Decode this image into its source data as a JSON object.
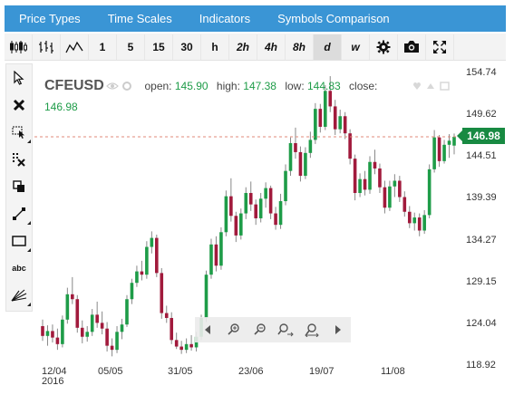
{
  "menu": {
    "items": [
      {
        "label": "Price Types"
      },
      {
        "label": "Time Scales"
      },
      {
        "label": "Indicators"
      },
      {
        "label": "Symbols Comparison"
      }
    ]
  },
  "toolbar": {
    "chart_types": [
      "candlestick-icon",
      "ohlc-bars-icon",
      "line-chart-icon"
    ],
    "periods": [
      "1",
      "5",
      "15",
      "30",
      "h",
      "2h",
      "4h",
      "8h",
      "d",
      "w"
    ],
    "active_period": "d",
    "actions": [
      "settings-gear-icon",
      "camera-icon",
      "fullscreen-icon"
    ]
  },
  "sidebar": {
    "tools": [
      "cursor-arrow-icon",
      "delete-x-icon",
      "select-area-icon",
      "clear-drawings-icon",
      "copy-icon",
      "trend-line-icon",
      "rectangle-icon",
      "text-abc-icon",
      "fan-lines-icon"
    ],
    "text_tool_label": "abc"
  },
  "legend": {
    "symbol": "CFEUSD",
    "open_label": "open:",
    "open": "145.90",
    "high_label": "high:",
    "high": "147.38",
    "low_label": "low:",
    "low": "144.83",
    "close_label": "close:",
    "close": "146.98"
  },
  "last_price": "146.98",
  "colors": {
    "menubar": "#3a95d5",
    "up": "#1e9c48",
    "down": "#a11a3c",
    "last_price_tag": "#188a42",
    "price_line": "#e08a7a"
  },
  "chart_data": {
    "type": "candlestick",
    "y_ticks": [
      "154.74",
      "149.62",
      "144.51",
      "139.39",
      "134.27",
      "129.15",
      "124.04",
      "118.92"
    ],
    "y_tick_values": [
      154.74,
      149.62,
      144.51,
      139.39,
      134.27,
      129.15,
      124.04,
      118.92
    ],
    "ylim": [
      118.92,
      154.74
    ],
    "x_ticks": [
      "12/04",
      "05/05",
      "31/05",
      "23/06",
      "19/07",
      "11/08"
    ],
    "x_year": "2016",
    "last_price": 146.98,
    "candles": [
      [
        123.8,
        124.6,
        122.0,
        122.6
      ],
      [
        122.6,
        123.9,
        121.4,
        123.2
      ],
      [
        123.2,
        124.0,
        121.8,
        122.4
      ],
      [
        122.4,
        123.5,
        120.9,
        121.6
      ],
      [
        121.6,
        125.1,
        121.2,
        124.6
      ],
      [
        124.6,
        128.5,
        124.1,
        127.7
      ],
      [
        127.7,
        129.8,
        126.5,
        127.1
      ],
      [
        127.1,
        127.6,
        123.0,
        123.6
      ],
      [
        123.6,
        124.5,
        121.7,
        122.5
      ],
      [
        122.5,
        123.8,
        121.9,
        123.1
      ],
      [
        123.1,
        125.9,
        122.6,
        125.2
      ],
      [
        125.2,
        126.8,
        123.6,
        124.2
      ],
      [
        124.2,
        125.6,
        122.8,
        123.5
      ],
      [
        123.5,
        124.3,
        120.7,
        121.4
      ],
      [
        121.4,
        122.3,
        120.1,
        120.9
      ],
      [
        120.9,
        123.8,
        120.5,
        123.1
      ],
      [
        123.1,
        124.7,
        122.2,
        124.0
      ],
      [
        124.0,
        127.6,
        123.7,
        127.1
      ],
      [
        127.1,
        129.6,
        126.5,
        129.1
      ],
      [
        129.1,
        131.2,
        128.6,
        130.5
      ],
      [
        130.5,
        131.8,
        129.4,
        130.1
      ],
      [
        130.1,
        134.2,
        129.6,
        133.5
      ],
      [
        133.5,
        135.4,
        132.7,
        134.6
      ],
      [
        134.6,
        135.0,
        129.8,
        130.3
      ],
      [
        130.3,
        130.9,
        124.7,
        125.4
      ],
      [
        125.4,
        126.3,
        124.2,
        124.8
      ],
      [
        124.8,
        125.5,
        121.6,
        122.1
      ],
      [
        122.1,
        123.0,
        121.0,
        121.3
      ],
      [
        121.3,
        122.0,
        120.4,
        120.9
      ],
      [
        120.9,
        122.3,
        120.5,
        121.6
      ],
      [
        121.6,
        122.7,
        120.8,
        121.2
      ],
      [
        121.2,
        123.1,
        120.7,
        122.5
      ],
      [
        122.5,
        125.2,
        122.1,
        124.8
      ],
      [
        124.8,
        130.6,
        124.3,
        130.1
      ],
      [
        130.1,
        134.5,
        129.6,
        133.8
      ],
      [
        133.8,
        134.8,
        130.5,
        131.2
      ],
      [
        131.2,
        135.9,
        130.7,
        135.3
      ],
      [
        135.3,
        140.4,
        134.8,
        139.7
      ],
      [
        139.7,
        141.9,
        136.6,
        137.3
      ],
      [
        137.3,
        137.8,
        134.1,
        134.9
      ],
      [
        134.9,
        138.2,
        134.4,
        137.6
      ],
      [
        137.6,
        140.8,
        136.9,
        140.1
      ],
      [
        140.1,
        141.5,
        137.9,
        138.7
      ],
      [
        138.7,
        139.3,
        136.2,
        137.0
      ],
      [
        137.0,
        140.1,
        136.5,
        139.4
      ],
      [
        139.4,
        141.4,
        138.3,
        140.7
      ],
      [
        140.7,
        141.0,
        136.9,
        137.6
      ],
      [
        137.6,
        138.4,
        135.6,
        136.2
      ],
      [
        136.2,
        140.0,
        135.7,
        139.1
      ],
      [
        139.1,
        143.6,
        138.6,
        142.8
      ],
      [
        142.8,
        146.9,
        142.2,
        146.2
      ],
      [
        146.2,
        148.1,
        144.3,
        145.1
      ],
      [
        145.1,
        145.8,
        141.5,
        142.2
      ],
      [
        142.2,
        145.7,
        141.8,
        145.0
      ],
      [
        145.0,
        147.6,
        144.4,
        146.6
      ],
      [
        146.6,
        151.1,
        146.1,
        150.4
      ],
      [
        150.4,
        151.0,
        147.5,
        148.2
      ],
      [
        148.2,
        153.3,
        147.8,
        152.6
      ],
      [
        152.6,
        154.4,
        150.0,
        150.7
      ],
      [
        150.7,
        151.5,
        147.2,
        147.9
      ],
      [
        147.9,
        150.3,
        147.4,
        149.5
      ],
      [
        149.5,
        150.0,
        146.7,
        147.4
      ],
      [
        147.4,
        147.9,
        143.6,
        144.3
      ],
      [
        144.3,
        144.8,
        139.2,
        140.1
      ],
      [
        140.1,
        142.5,
        139.6,
        141.8
      ],
      [
        141.8,
        142.8,
        139.8,
        140.5
      ],
      [
        140.5,
        144.6,
        140.0,
        143.9
      ],
      [
        143.9,
        145.4,
        142.4,
        143.1
      ],
      [
        143.1,
        143.7,
        140.1,
        140.8
      ],
      [
        140.8,
        141.6,
        137.6,
        138.3
      ],
      [
        138.3,
        141.6,
        137.9,
        140.9
      ],
      [
        140.9,
        142.4,
        139.6,
        141.6
      ],
      [
        141.6,
        142.2,
        139.0,
        139.6
      ],
      [
        139.6,
        140.3,
        137.2,
        137.8
      ],
      [
        137.8,
        138.5,
        135.8,
        136.4
      ],
      [
        136.4,
        137.7,
        135.5,
        137.1
      ],
      [
        137.1,
        137.6,
        134.8,
        135.5
      ],
      [
        135.5,
        138.0,
        135.1,
        137.4
      ],
      [
        137.4,
        143.6,
        137.0,
        143.0
      ],
      [
        143.0,
        147.8,
        142.6,
        146.9
      ],
      [
        146.9,
        147.2,
        143.3,
        144.0
      ],
      [
        144.0,
        146.6,
        143.7,
        146.0
      ],
      [
        146.0,
        147.3,
        144.4,
        146.5
      ],
      [
        145.9,
        147.38,
        144.83,
        146.98
      ]
    ]
  }
}
